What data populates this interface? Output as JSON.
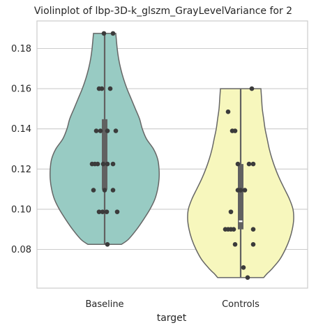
{
  "chart_data": {
    "type": "violin",
    "title": "Violinplot of lbp-3D-k_glszm_GrayLevelVariance for 2",
    "xlabel": "target",
    "ylabel": "",
    "categories": [
      "Baseline",
      "Controls"
    ],
    "ylim": [
      0.06,
      0.194
    ],
    "yticks": [
      0.08,
      0.1,
      0.12,
      0.14,
      0.16,
      0.18
    ],
    "ytick_labels": [
      "0.08",
      "0.10",
      "0.12",
      "0.14",
      "0.16",
      "0.18"
    ],
    "grid": true,
    "colors": {
      "Baseline": "#98cbc3",
      "Controls": "#f7f7bd",
      "outline": "#666666",
      "box": "#616161",
      "median": "#ffffff",
      "points": "#3b3b3b",
      "grid": "#cccccc",
      "frame": "#cccccc"
    },
    "series": [
      {
        "category": "Baseline",
        "min": 0.0825,
        "max": 0.1875,
        "q1": 0.1098,
        "median": 0.1225,
        "q3": 0.1448,
        "density": [
          [
            0.0825,
            24
          ],
          [
            0.085,
            34
          ],
          [
            0.09,
            46
          ],
          [
            0.095,
            56
          ],
          [
            0.1,
            65
          ],
          [
            0.105,
            72
          ],
          [
            0.11,
            76
          ],
          [
            0.115,
            78
          ],
          [
            0.12,
            78
          ],
          [
            0.125,
            76
          ],
          [
            0.13,
            70
          ],
          [
            0.135,
            60
          ],
          [
            0.14,
            54
          ],
          [
            0.145,
            50
          ],
          [
            0.15,
            44
          ],
          [
            0.155,
            38
          ],
          [
            0.16,
            32
          ],
          [
            0.165,
            27
          ],
          [
            0.17,
            23
          ],
          [
            0.175,
            20
          ],
          [
            0.18,
            18
          ],
          [
            0.1875,
            16
          ]
        ],
        "points": [
          [
            0.1875,
            -1
          ],
          [
            0.1875,
            12
          ],
          [
            0.16,
            -8
          ],
          [
            0.16,
            -4
          ],
          [
            0.16,
            8
          ],
          [
            0.139,
            -12
          ],
          [
            0.139,
            -6
          ],
          [
            0.139,
            4
          ],
          [
            0.139,
            16
          ],
          [
            0.1225,
            -18
          ],
          [
            0.1225,
            -14
          ],
          [
            0.1225,
            -10
          ],
          [
            0.1225,
            -2
          ],
          [
            0.1225,
            4
          ],
          [
            0.1225,
            12
          ],
          [
            0.1095,
            -16
          ],
          [
            0.1095,
            0
          ],
          [
            0.1095,
            12
          ],
          [
            0.0987,
            -8
          ],
          [
            0.0987,
            -3
          ],
          [
            0.0987,
            3
          ],
          [
            0.0987,
            18
          ],
          [
            0.0825,
            4
          ]
        ]
      },
      {
        "category": "Controls",
        "min": 0.066,
        "max": 0.16,
        "q1": 0.09,
        "median": 0.094,
        "q3": 0.1225,
        "density": [
          [
            0.066,
            33
          ],
          [
            0.068,
            38
          ],
          [
            0.07,
            44
          ],
          [
            0.075,
            56
          ],
          [
            0.08,
            64
          ],
          [
            0.085,
            70
          ],
          [
            0.09,
            74
          ],
          [
            0.095,
            76
          ],
          [
            0.1,
            75
          ],
          [
            0.105,
            70
          ],
          [
            0.11,
            63
          ],
          [
            0.115,
            56
          ],
          [
            0.12,
            50
          ],
          [
            0.125,
            45
          ],
          [
            0.13,
            41
          ],
          [
            0.135,
            38
          ],
          [
            0.14,
            35
          ],
          [
            0.145,
            33
          ],
          [
            0.15,
            31
          ],
          [
            0.155,
            30
          ],
          [
            0.16,
            29
          ]
        ],
        "points": [
          [
            0.16,
            16
          ],
          [
            0.1485,
            -18
          ],
          [
            0.139,
            -12
          ],
          [
            0.139,
            -8
          ],
          [
            0.1225,
            -4
          ],
          [
            0.1225,
            12
          ],
          [
            0.1225,
            18
          ],
          [
            0.1095,
            -4
          ],
          [
            0.1095,
            0
          ],
          [
            0.1095,
            6
          ],
          [
            0.0987,
            -14
          ],
          [
            0.09,
            -22
          ],
          [
            0.09,
            -18
          ],
          [
            0.09,
            -14
          ],
          [
            0.09,
            -10
          ],
          [
            0.09,
            18
          ],
          [
            0.0825,
            -8
          ],
          [
            0.0825,
            18
          ],
          [
            0.071,
            4
          ],
          [
            0.066,
            10
          ]
        ]
      }
    ]
  }
}
